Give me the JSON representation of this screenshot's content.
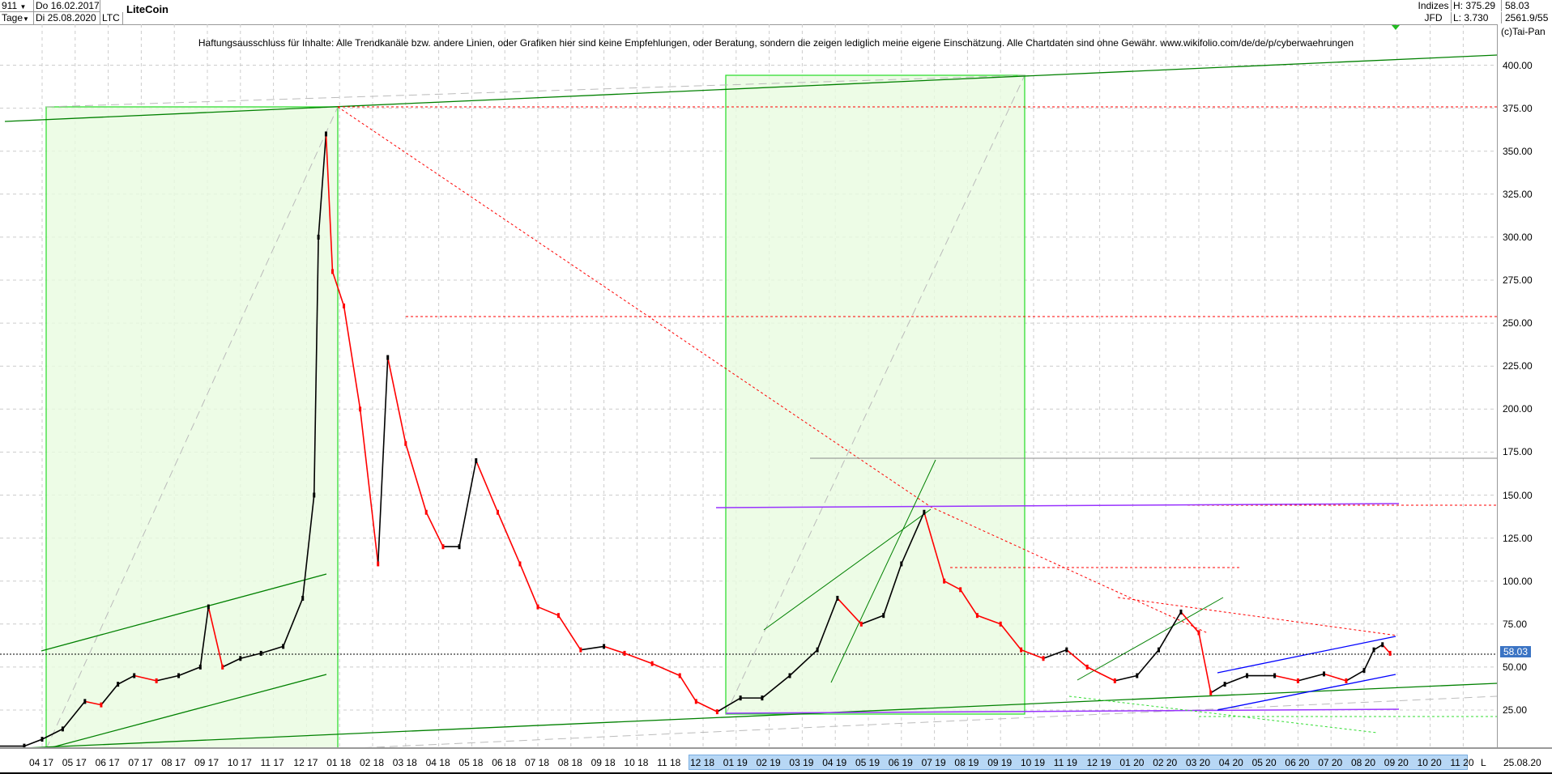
{
  "header": {
    "count": "911",
    "period": "Tage",
    "date_from": "Do 16.02.2017",
    "date_to": "Di 25.08.2020",
    "symbol": "LTC",
    "title": "LiteCoin",
    "exchange_top": "Indizes",
    "exchange_bottom": "JFD",
    "high": "H: 375.29",
    "low": "L: 3.730",
    "last": "58.03",
    "extra": "2561.9/55",
    "copyright": "(c)Tai-Pan"
  },
  "disclaimer": "Haftungsausschluss für Inhalte: Alle Trendkanäle bzw. andere Linien, oder Grafiken hier sind keine Empfehlungen, oder Beratung, sondern die zeigen lediglich meine eigene Einschätzung. Alle Chartdaten sind ohne Gewähr.  www.wikifolio.com/de/de/p/cyberwaehrungen",
  "footer": {
    "scale_mode": "L",
    "end_date": "25.08.20"
  },
  "colors": {
    "up": "#000000",
    "down": "#ff0000",
    "trend_green": "#008000",
    "box_fill": "#e8fbe0",
    "box_border": "#33dd33",
    "resistance": "#ff0000",
    "purple": "#9933ff",
    "blue": "#0000ff",
    "price_tag": "#3b74c4"
  },
  "chart_data": {
    "type": "line",
    "title": "LiteCoin",
    "ylim": [
      0,
      412
    ],
    "y_ticks": [
      "400.00",
      "375.00",
      "350.00",
      "325.00",
      "300.00",
      "275.00",
      "250.00",
      "225.00",
      "200.00",
      "175.00",
      "150.00",
      "125.00",
      "100.00",
      "75.00",
      "50.00",
      "25.00"
    ],
    "x_ticks": [
      "04 17",
      "05 17",
      "06 17",
      "07 17",
      "08 17",
      "09 17",
      "10 17",
      "11 17",
      "12 17",
      "01 18",
      "02 18",
      "03 18",
      "04 18",
      "05 18",
      "06 18",
      "07 18",
      "08 18",
      "09 18",
      "10 18",
      "11 18",
      "12 18",
      "01 19",
      "02 19",
      "03 19",
      "04 19",
      "05 19",
      "06 19",
      "07 19",
      "08 19",
      "09 19",
      "10 19",
      "11 19",
      "12 19",
      "01 20",
      "02 20",
      "03 20",
      "04 20",
      "05 20",
      "06 20",
      "07 20",
      "08 20",
      "09 20",
      "10 20",
      "11 20"
    ],
    "selected_range": [
      "12 18",
      "11 20"
    ],
    "grid": true,
    "last_price": 58.03,
    "series": [
      {
        "x": [
          "2017-02-16",
          "2017-03-15",
          "2017-04-01",
          "2017-04-20",
          "2017-05-10",
          "2017-05-25",
          "2017-06-10",
          "2017-06-25",
          "2017-07-15",
          "2017-08-05",
          "2017-08-25",
          "2017-09-02",
          "2017-09-15",
          "2017-10-01",
          "2017-10-20",
          "2017-11-10",
          "2017-11-28",
          "2017-12-08",
          "2017-12-12",
          "2017-12-19",
          "2017-12-25",
          "2018-01-05",
          "2018-01-20",
          "2018-02-06",
          "2018-02-15",
          "2018-03-01",
          "2018-03-20",
          "2018-04-05",
          "2018-04-20",
          "2018-05-05",
          "2018-05-25",
          "2018-06-15",
          "2018-07-01",
          "2018-07-20",
          "2018-08-10",
          "2018-09-01",
          "2018-09-20",
          "2018-10-15",
          "2018-11-10",
          "2018-11-25",
          "2018-12-14",
          "2019-01-05",
          "2019-01-25",
          "2019-02-20",
          "2019-03-15",
          "2019-04-03",
          "2019-04-25",
          "2019-05-15",
          "2019-06-01",
          "2019-06-22",
          "2019-07-10",
          "2019-07-25",
          "2019-08-10",
          "2019-09-01",
          "2019-09-20",
          "2019-10-10",
          "2019-11-01",
          "2019-11-20",
          "2019-12-15",
          "2020-01-05",
          "2020-01-25",
          "2020-02-15",
          "2020-03-01",
          "2020-03-12",
          "2020-03-25",
          "2020-04-15",
          "2020-05-10",
          "2020-06-01",
          "2020-06-25",
          "2020-07-15",
          "2020-08-01",
          "2020-08-10",
          "2020-08-18",
          "2020-08-25"
        ],
        "values": [
          4,
          4,
          8,
          14,
          30,
          28,
          40,
          45,
          42,
          45,
          50,
          85,
          50,
          55,
          58,
          62,
          90,
          150,
          300,
          360,
          280,
          260,
          200,
          110,
          230,
          180,
          140,
          120,
          120,
          170,
          140,
          110,
          85,
          80,
          60,
          62,
          58,
          52,
          45,
          30,
          24,
          32,
          32,
          45,
          60,
          90,
          75,
          80,
          110,
          140,
          100,
          95,
          80,
          75,
          60,
          55,
          60,
          50,
          42,
          45,
          60,
          82,
          70,
          35,
          40,
          45,
          45,
          42,
          46,
          42,
          48,
          60,
          63,
          58
        ]
      }
    ]
  }
}
